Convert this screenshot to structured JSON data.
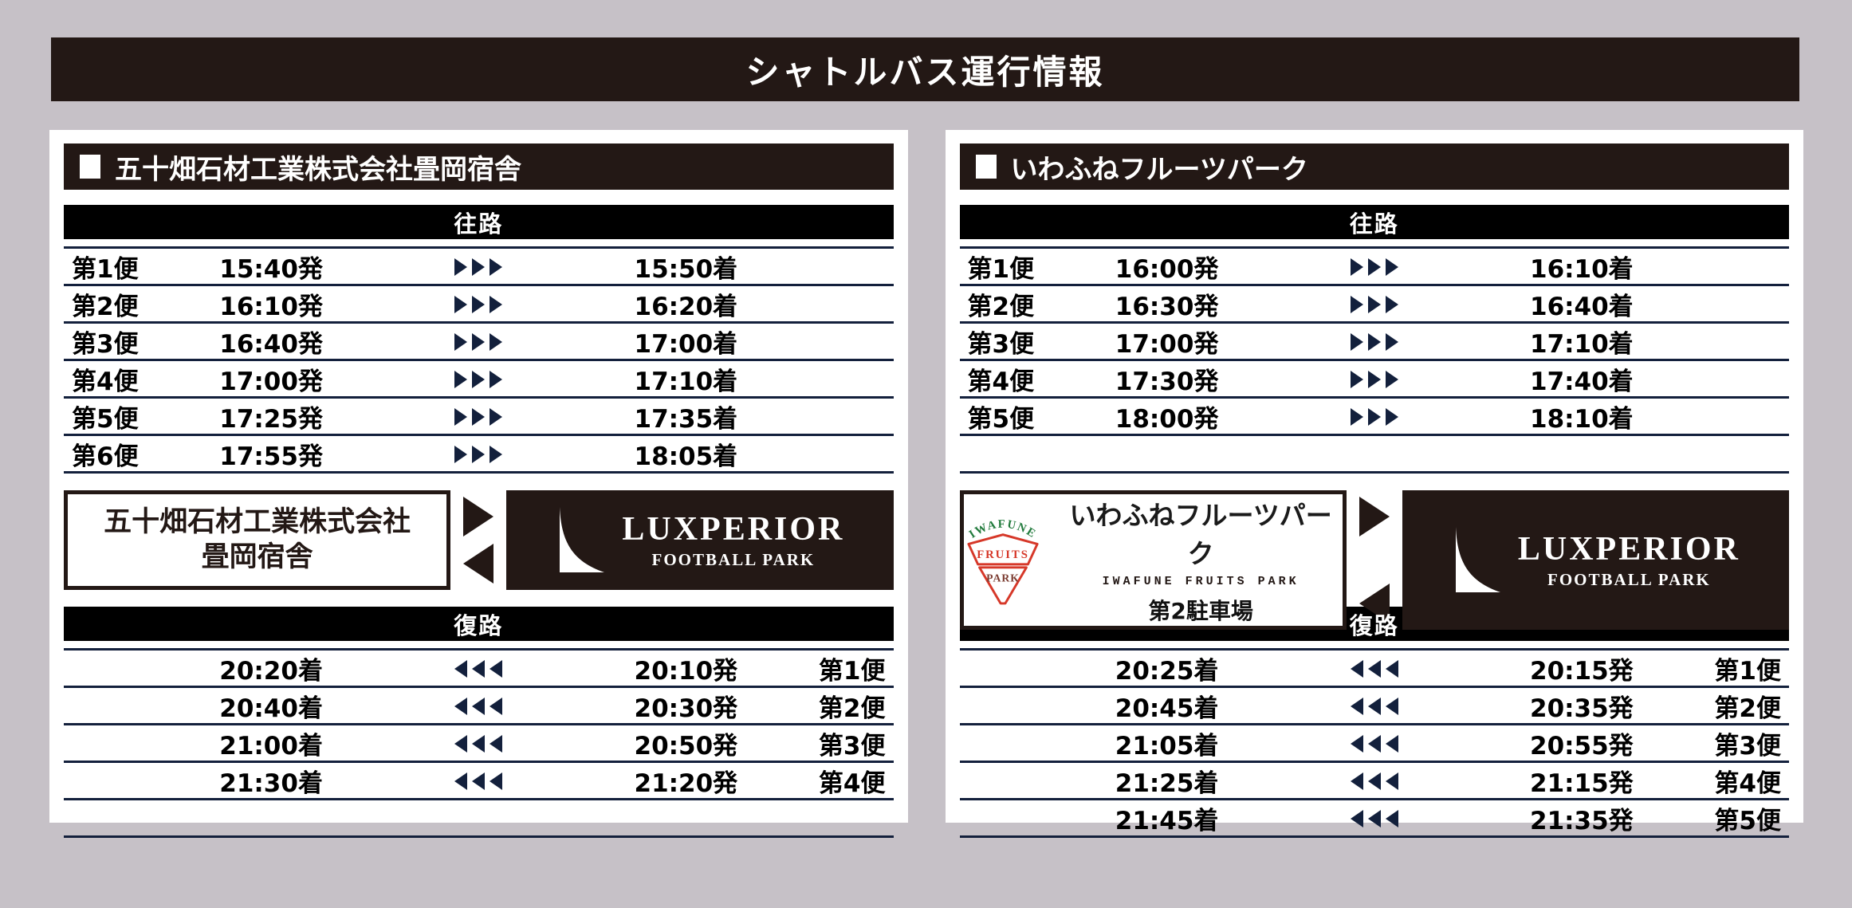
{
  "title": "シャトルバス運行情報",
  "colors": {
    "background": "#c6c1c7",
    "dark_brown": "#231815",
    "pure_black": "#000000",
    "navy_lines": "#13203c",
    "logo_red": "#d63829",
    "logo_green": "#217a3c",
    "logo_maroon": "#7b3c31"
  },
  "panels": [
    {
      "heading": "五十畑石材工業株式会社畳岡宿舎",
      "outbound_label": "往路",
      "return_label": "復路",
      "outbound_rows": [
        {
          "no": "第1便",
          "dep": "15:40発",
          "arr": "15:50着"
        },
        {
          "no": "第2便",
          "dep": "16:10発",
          "arr": "16:20着"
        },
        {
          "no": "第3便",
          "dep": "16:40発",
          "arr": "17:00着"
        },
        {
          "no": "第4便",
          "dep": "17:00発",
          "arr": "17:10着"
        },
        {
          "no": "第5便",
          "dep": "17:25発",
          "arr": "17:35着"
        },
        {
          "no": "第6便",
          "dep": "17:55発",
          "arr": "18:05着"
        }
      ],
      "return_rows": [
        {
          "no": "第1便",
          "arr": "20:20着",
          "dep": "20:10発"
        },
        {
          "no": "第2便",
          "arr": "20:40着",
          "dep": "20:30発"
        },
        {
          "no": "第3便",
          "arr": "21:00着",
          "dep": "20:50発"
        },
        {
          "no": "第4便",
          "arr": "21:30着",
          "dep": "21:20発"
        },
        {
          "empty": true
        }
      ],
      "origin": {
        "line1": "五十畑石材工業株式会社",
        "line2": "畳岡宿舎"
      },
      "destination": {
        "name": "LUXPERIOR",
        "sub": "FOOTBALL PARK"
      }
    },
    {
      "heading": "いわふねフルーツパーク",
      "outbound_label": "往路",
      "return_label": "復路",
      "outbound_rows": [
        {
          "no": "第1便",
          "dep": "16:00発",
          "arr": "16:10着"
        },
        {
          "no": "第2便",
          "dep": "16:30発",
          "arr": "16:40着"
        },
        {
          "no": "第3便",
          "dep": "17:00発",
          "arr": "17:10着"
        },
        {
          "no": "第4便",
          "dep": "17:30発",
          "arr": "17:40着"
        },
        {
          "no": "第5便",
          "dep": "18:00発",
          "arr": "18:10着"
        },
        {
          "empty": true
        }
      ],
      "return_rows": [
        {
          "no": "第1便",
          "arr": "20:25着",
          "dep": "20:15発"
        },
        {
          "no": "第2便",
          "arr": "20:45着",
          "dep": "20:35発"
        },
        {
          "no": "第3便",
          "arr": "21:05着",
          "dep": "20:55発"
        },
        {
          "no": "第4便",
          "arr": "21:25着",
          "dep": "21:15発"
        },
        {
          "no": "第5便",
          "arr": "21:45着",
          "dep": "21:35発"
        }
      ],
      "origin": {
        "logo_arc": "IWAFUNE",
        "logo_top": "FRUITS",
        "logo_bottom": "PARK",
        "name": "いわふねフルーツパーク",
        "sub": "IWAFUNE FRUITS PARK",
        "note": "第2駐車場"
      },
      "destination": {
        "name": "LUXPERIOR",
        "sub": "FOOTBALL PARK"
      }
    }
  ]
}
